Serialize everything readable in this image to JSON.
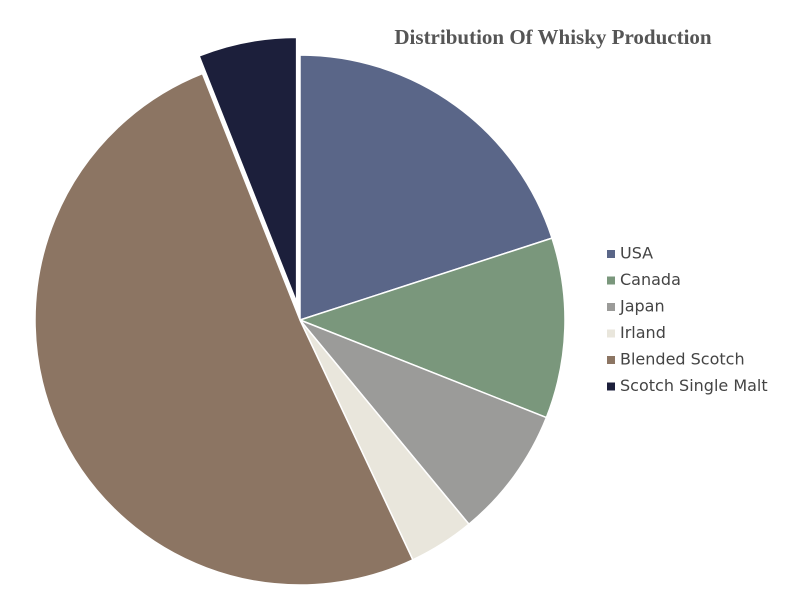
{
  "chart_data": {
    "type": "pie",
    "title": "Distribution Of Whisky Production",
    "categories": [
      "USA",
      "Canada",
      "Japan",
      "Irland",
      "Blended Scotch",
      "Scotch Single Malt"
    ],
    "values": [
      20,
      11,
      8,
      4,
      51,
      6
    ],
    "colors": [
      "#5a6688",
      "#7a977c",
      "#9b9b99",
      "#e9e6dc",
      "#8c7563",
      "#1c1f3b"
    ],
    "legend": "right"
  }
}
